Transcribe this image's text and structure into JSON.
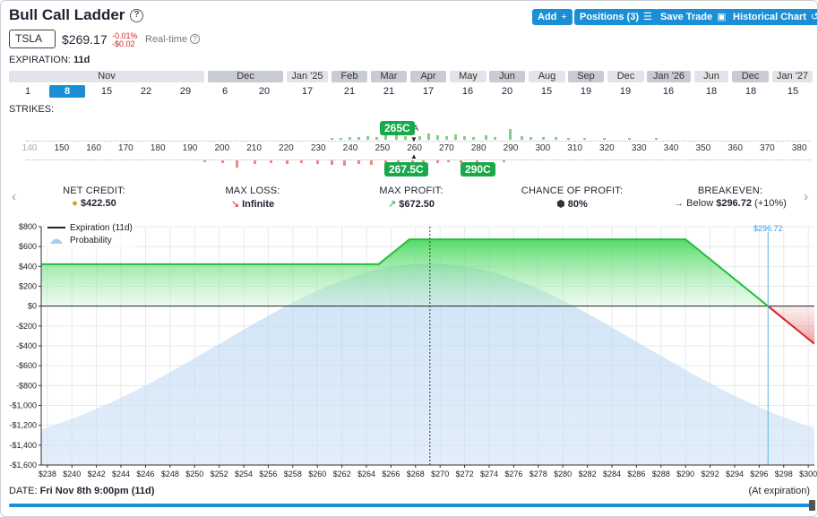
{
  "header": {
    "title": "Bull Call Ladder",
    "help_icon": "question-circle-icon",
    "buttons": [
      {
        "label": "Add",
        "icon": "+"
      },
      {
        "label": "Positions (3)",
        "icon": "☰"
      },
      {
        "label": "Save Trade",
        "icon": "▣"
      },
      {
        "label": "Historical Chart",
        "icon": "↺"
      }
    ]
  },
  "quote": {
    "ticker": "TSLA",
    "price": "$269.17",
    "change_pct": "-0.01%",
    "change_abs": "-$0.02",
    "realtime": "Real-time"
  },
  "expiration": {
    "label": "EXPIRATION:",
    "value": "11d",
    "months": [
      "Nov",
      "Dec",
      "Jan '25",
      "Feb",
      "Mar",
      "Apr",
      "May",
      "Jun",
      "Aug",
      "Sep",
      "Dec",
      "Jan '26",
      "Jun",
      "Dec",
      "Jan '27"
    ],
    "days": [
      "1",
      "8",
      "15",
      "22",
      "29",
      "6",
      "20",
      "17",
      "21",
      "21",
      "17",
      "16",
      "20",
      "15",
      "19",
      "19",
      "16",
      "18",
      "18",
      "15"
    ],
    "selected_day": "8"
  },
  "strikes": {
    "label": "STRIKES:",
    "ticks": [
      "140",
      "150",
      "160",
      "170",
      "180",
      "190",
      "200",
      "210",
      "220",
      "230",
      "240",
      "250",
      "260",
      "270",
      "280",
      "290",
      "300",
      "310",
      "320",
      "330",
      "340",
      "350",
      "360",
      "370",
      "380",
      "390",
      "400"
    ],
    "legs": [
      "265C",
      "267.5C",
      "290C"
    ],
    "current_marker": "A"
  },
  "stats": {
    "net_credit": {
      "label": "NET CREDIT:",
      "value": "$422.50",
      "icon": "coins-icon"
    },
    "max_loss": {
      "label": "MAX LOSS:",
      "value": "Infinite",
      "icon": "arrow-down-right-icon"
    },
    "max_profit": {
      "label": "MAX PROFIT:",
      "value": "$672.50",
      "icon": "arrow-up-right-icon"
    },
    "chance": {
      "label": "CHANCE OF PROFIT:",
      "value": "80%",
      "icon": "dice-icon"
    },
    "breakeven": {
      "label": "BREAKEVEN:",
      "value": "Below",
      "value2": "$296.72",
      "value3": "(+10%)",
      "icon": "arrow-right-icon"
    }
  },
  "chart_data": {
    "type": "line",
    "legend": [
      "Expiration (11d)",
      "Probability"
    ],
    "legend_position": "top-left",
    "ylim": [
      -1600,
      800
    ],
    "xlim": [
      237.5,
      300.5
    ],
    "yticks": [
      800,
      600,
      400,
      200,
      0,
      -200,
      -400,
      -600,
      -800,
      -1000,
      -1200,
      -1400,
      -1600
    ],
    "ytick_labels": [
      "$800",
      "$600",
      "$400",
      "$200",
      "$0",
      "-$200",
      "-$400",
      "-$600",
      "-$800",
      "-$1,000",
      "-$1,200",
      "-$1,400",
      "-$1,600"
    ],
    "xticks": [
      238,
      240,
      242,
      244,
      246,
      248,
      250,
      252,
      254,
      256,
      258,
      260,
      262,
      264,
      266,
      268,
      270,
      272,
      274,
      276,
      278,
      280,
      282,
      284,
      286,
      288,
      290,
      292,
      294,
      296,
      298,
      300
    ],
    "xtick_labels": [
      "$238",
      "$240",
      "$242",
      "$244",
      "$246",
      "$248",
      "$250",
      "$252",
      "$254",
      "$256",
      "$258",
      "$260",
      "$262",
      "$264",
      "$266",
      "$268",
      "$270",
      "$272",
      "$274",
      "$276",
      "$278",
      "$280",
      "$282",
      "$284",
      "$286",
      "$288",
      "$290",
      "$292",
      "$294",
      "$296",
      "$298",
      "$300"
    ],
    "series": [
      {
        "name": "Expiration (11d)",
        "x": [
          237.5,
          265,
          267.5,
          290,
          296.72,
          300.5
        ],
        "y": [
          422.5,
          422.5,
          672.5,
          672.5,
          0,
          -380
        ]
      }
    ],
    "current_price": 269.17,
    "breakeven": 296.72,
    "breakeven_label": "$296.72"
  },
  "footer": {
    "date_label": "DATE:",
    "date_value": "Fri Nov 8th 9:00pm (11d)",
    "at_expiration": "(At expiration)"
  },
  "colors": {
    "accent": "#1a8fd6",
    "profit": "#22c03a",
    "loss": "#d8232a",
    "probability": "#a9cdee"
  }
}
